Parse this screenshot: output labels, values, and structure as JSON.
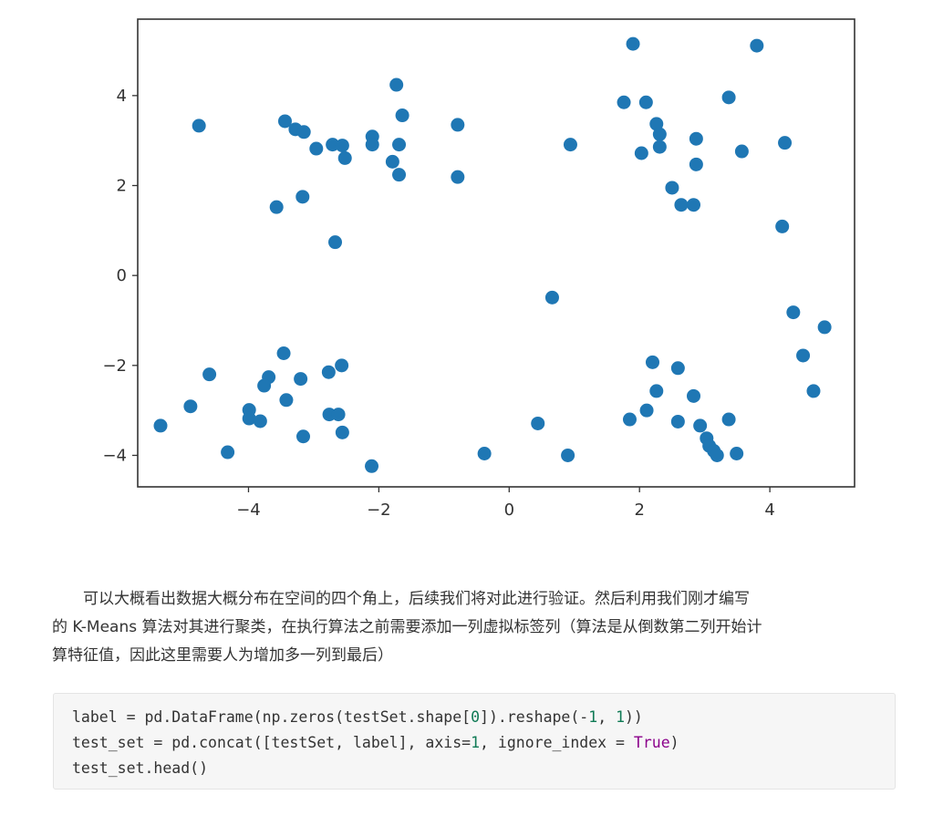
{
  "chart_data": {
    "type": "scatter",
    "title": "",
    "xlabel": "",
    "ylabel": "",
    "xlim": [
      -5.7,
      5.3
    ],
    "ylim": [
      -4.7,
      5.7
    ],
    "xticks": [
      -4,
      -2,
      0,
      2,
      4
    ],
    "yticks": [
      -4,
      -2,
      0,
      2,
      4
    ],
    "xtick_labels": [
      "−4",
      "−2",
      "0",
      "2",
      "4"
    ],
    "ytick_labels": [
      "−4",
      "−2",
      "0",
      "2",
      "4"
    ],
    "grid": false,
    "marker_color": "#1f77b4",
    "series": [
      {
        "points": [
          [
            -4.76,
            3.33
          ],
          [
            -3.44,
            3.43
          ],
          [
            -3.28,
            3.25
          ],
          [
            -3.15,
            3.19
          ],
          [
            -2.96,
            2.82
          ],
          [
            -2.71,
            2.91
          ],
          [
            -2.56,
            2.89
          ],
          [
            -2.52,
            2.61
          ],
          [
            -2.1,
            3.09
          ],
          [
            -2.1,
            2.91
          ],
          [
            -1.73,
            4.24
          ],
          [
            -1.64,
            3.56
          ],
          [
            -1.69,
            2.91
          ],
          [
            -1.79,
            2.53
          ],
          [
            -1.69,
            2.24
          ],
          [
            -0.79,
            3.35
          ],
          [
            -0.79,
            2.19
          ],
          [
            -3.57,
            1.52
          ],
          [
            -3.17,
            1.75
          ],
          [
            -2.67,
            0.74
          ],
          [
            0.94,
            2.91
          ],
          [
            1.9,
            5.15
          ],
          [
            3.8,
            5.11
          ],
          [
            1.76,
            3.85
          ],
          [
            2.1,
            3.85
          ],
          [
            3.37,
            3.96
          ],
          [
            2.26,
            3.37
          ],
          [
            2.31,
            3.14
          ],
          [
            2.31,
            2.86
          ],
          [
            2.03,
            2.72
          ],
          [
            2.87,
            3.04
          ],
          [
            3.57,
            2.76
          ],
          [
            4.23,
            2.95
          ],
          [
            2.87,
            2.47
          ],
          [
            2.5,
            1.95
          ],
          [
            2.64,
            1.57
          ],
          [
            2.83,
            1.57
          ],
          [
            4.19,
            1.09
          ],
          [
            0.66,
            -0.49
          ],
          [
            4.36,
            -0.82
          ],
          [
            4.84,
            -1.15
          ],
          [
            4.51,
            -1.78
          ],
          [
            4.67,
            -2.57
          ],
          [
            -3.46,
            -1.73
          ],
          [
            -4.6,
            -2.2
          ],
          [
            -3.69,
            -2.26
          ],
          [
            -3.76,
            -2.45
          ],
          [
            -3.2,
            -2.3
          ],
          [
            -2.77,
            -2.15
          ],
          [
            -2.57,
            -2.0
          ],
          [
            -4.89,
            -2.91
          ],
          [
            -3.99,
            -2.99
          ],
          [
            -3.99,
            -3.18
          ],
          [
            -3.82,
            -3.24
          ],
          [
            -3.42,
            -2.77
          ],
          [
            -2.76,
            -3.09
          ],
          [
            -2.62,
            -3.09
          ],
          [
            -2.56,
            -3.49
          ],
          [
            -3.16,
            -3.58
          ],
          [
            -5.35,
            -3.34
          ],
          [
            -4.32,
            -3.93
          ],
          [
            -2.11,
            -4.24
          ],
          [
            -0.38,
            -3.96
          ],
          [
            0.44,
            -3.29
          ],
          [
            0.9,
            -4.0
          ],
          [
            2.2,
            -1.93
          ],
          [
            2.59,
            -2.06
          ],
          [
            2.26,
            -2.57
          ],
          [
            2.83,
            -2.68
          ],
          [
            2.11,
            -3.0
          ],
          [
            1.85,
            -3.2
          ],
          [
            2.59,
            -3.25
          ],
          [
            3.37,
            -3.2
          ],
          [
            2.93,
            -3.34
          ],
          [
            3.03,
            -3.62
          ],
          [
            3.07,
            -3.79
          ],
          [
            3.14,
            -3.9
          ],
          [
            3.19,
            -4.0
          ],
          [
            3.49,
            -3.96
          ]
        ]
      }
    ]
  },
  "text": {
    "line1": "可以大概看出数据大概分布在空间的四个角上，后续我们将对此进行验证。然后利用我们刚才编写",
    "line2": "的 K-Means 算法对其进行聚类，在执行算法之前需要添加一列虚拟标签列（算法是从倒数第二列开始计",
    "line3": "算特征值，因此这里需要人为增加多一列到最后）"
  },
  "code": {
    "l1_a": "label = pd.DataFrame(np.zeros(testSet.shape[",
    "l1_n1": "0",
    "l1_b": "]).reshape(-",
    "l1_n2": "1",
    "l1_c": ", ",
    "l1_n3": "1",
    "l1_d": "))",
    "l2_a": "test_set = pd.concat([testSet, label], axis=",
    "l2_n1": "1",
    "l2_b": ", ignore_index = ",
    "l2_kw": "True",
    "l2_c": ")",
    "l3": "test_set.head()"
  }
}
